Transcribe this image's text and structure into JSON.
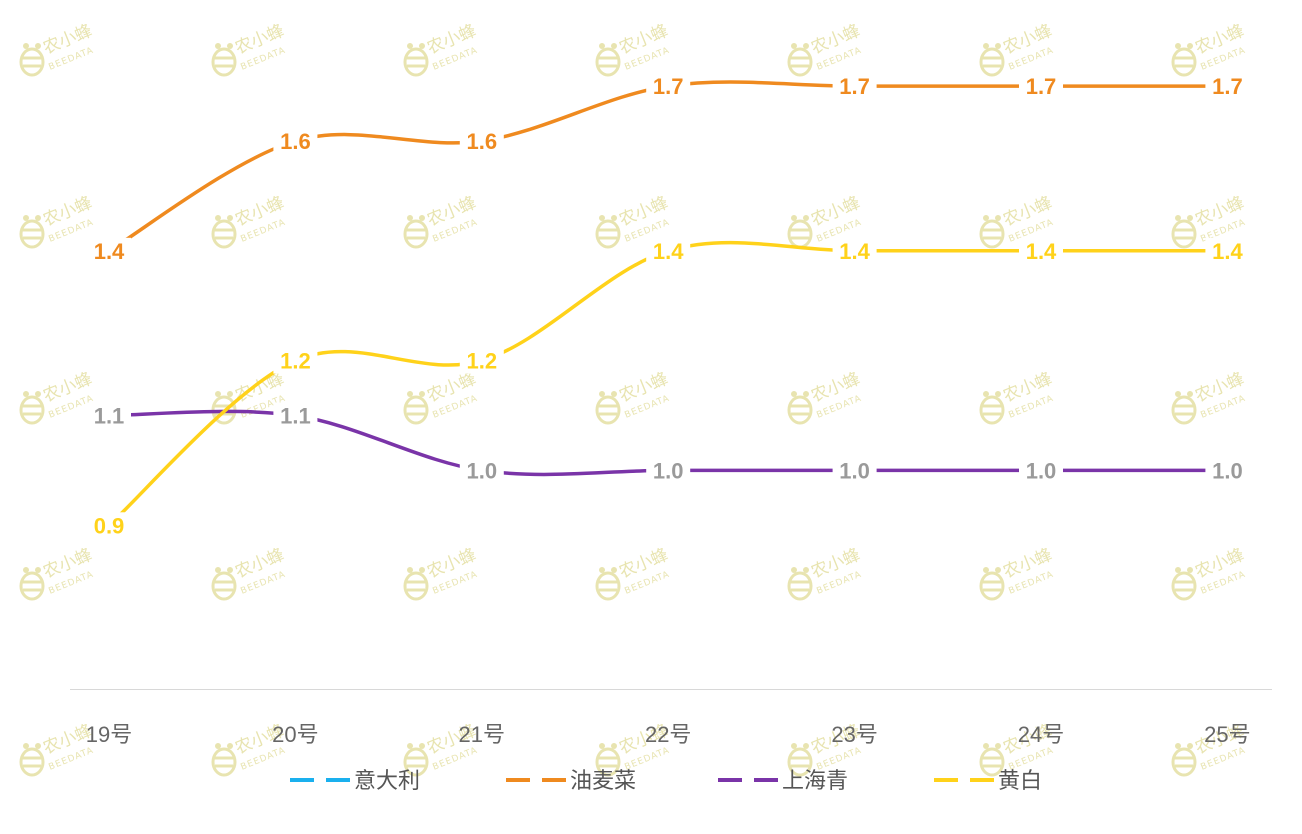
{
  "chart_data": {
    "type": "line",
    "categories": [
      "19号",
      "20号",
      "21号",
      "22号",
      "23号",
      "24号",
      "25号"
    ],
    "series": [
      {
        "name": "意大利",
        "color": "#1ab0ee",
        "values": [
          null,
          null,
          null,
          null,
          null,
          null,
          null
        ]
      },
      {
        "name": "油麦菜",
        "color": "#ef8a1f",
        "values": [
          1.4,
          1.6,
          1.6,
          1.7,
          1.7,
          1.7,
          1.7
        ]
      },
      {
        "name": "上海青",
        "color": "#7a34a8",
        "label_color": "#9a9a9a",
        "values": [
          1.1,
          1.1,
          1.0,
          1.0,
          1.0,
          1.0,
          1.0
        ]
      },
      {
        "name": "黄白",
        "color": "#ffd21a",
        "values": [
          0.9,
          1.2,
          1.2,
          1.4,
          1.4,
          1.4,
          1.4
        ]
      }
    ],
    "ylim": [
      0.6,
      1.8
    ],
    "grid": false,
    "legend": "bottom",
    "axis_color": "#d8d8d8",
    "tick_color": "#666666"
  },
  "watermark": {
    "brand": "农小蜂",
    "sub": "BEEDATA",
    "icon": "bee-icon",
    "color": "#e8e4b0"
  }
}
